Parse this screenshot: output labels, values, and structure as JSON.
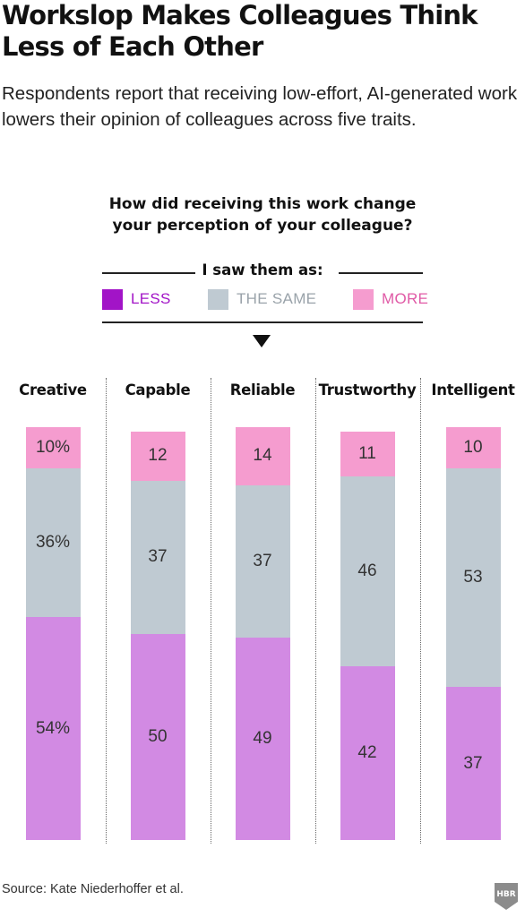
{
  "header": {
    "title": "Workslop Makes Colleagues Think Less of Each Other",
    "subtitle": "Respondents report that receiving low-effort, AI-generated work lowers their opinion of colleagues across five traits."
  },
  "question": "How did receiving this work change your perception of your colleague?",
  "legend": {
    "title": "I saw them as:",
    "items": [
      {
        "label": "LESS",
        "color": "#a214c7",
        "text_color": "#a214c7"
      },
      {
        "label": "THE SAME",
        "color": "#bfcad2",
        "text_color": "#9aa3aa"
      },
      {
        "label": "MORE",
        "color": "#f59ccf",
        "text_color": "#e05aa6"
      }
    ]
  },
  "chart_data": {
    "type": "bar",
    "stacked": true,
    "categories": [
      "Creative",
      "Capable",
      "Reliable",
      "Trustworthy",
      "Intelligent"
    ],
    "series": [
      {
        "name": "LESS",
        "values": [
          54,
          50,
          49,
          42,
          37
        ],
        "color": "#d28ae3"
      },
      {
        "name": "THE SAME",
        "values": [
          36,
          37,
          37,
          46,
          53
        ],
        "color": "#bfcad2"
      },
      {
        "name": "MORE",
        "values": [
          10,
          12,
          14,
          11,
          10
        ],
        "color": "#f59ccf"
      }
    ],
    "labels": {
      "LESS": [
        "54%",
        "50",
        "49",
        "42",
        "37"
      ],
      "THE SAME": [
        "36%",
        "37",
        "37",
        "46",
        "53"
      ],
      "MORE": [
        "10%",
        "12",
        "14",
        "11",
        "10"
      ]
    },
    "ylim": [
      0,
      100
    ]
  },
  "footer": {
    "source": "Source: Kate Niederhoffer et al.",
    "logo": "HBR"
  }
}
